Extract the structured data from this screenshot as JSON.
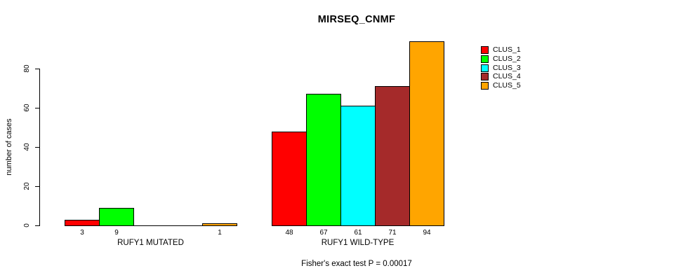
{
  "chart_data": {
    "type": "bar",
    "title": "MIRSEQ_CNMF",
    "categories": [
      "RUFY1 MUTATED",
      "RUFY1 WILD-TYPE"
    ],
    "series": [
      {
        "name": "CLUS_1",
        "color": "#ff0000",
        "values": [
          3,
          48
        ]
      },
      {
        "name": "CLUS_2",
        "color": "#00ff00",
        "values": [
          9,
          67
        ]
      },
      {
        "name": "CLUS_3",
        "color": "#00ffff",
        "values": [
          0,
          61
        ]
      },
      {
        "name": "CLUS_4",
        "color": "#a52a2a",
        "values": [
          0,
          71
        ]
      },
      {
        "name": "CLUS_5",
        "color": "#ffa500",
        "values": [
          1,
          94
        ]
      }
    ],
    "ylabel": "number of cases",
    "xlabel": "",
    "yticks": [
      0,
      20,
      40,
      60,
      80
    ],
    "ylim": [
      0,
      97
    ],
    "grid": false,
    "legend_position": "right",
    "bar_value_labels": "shown below each nonzero bar",
    "annotation": "Fisher's exact test P = 0.00017"
  }
}
